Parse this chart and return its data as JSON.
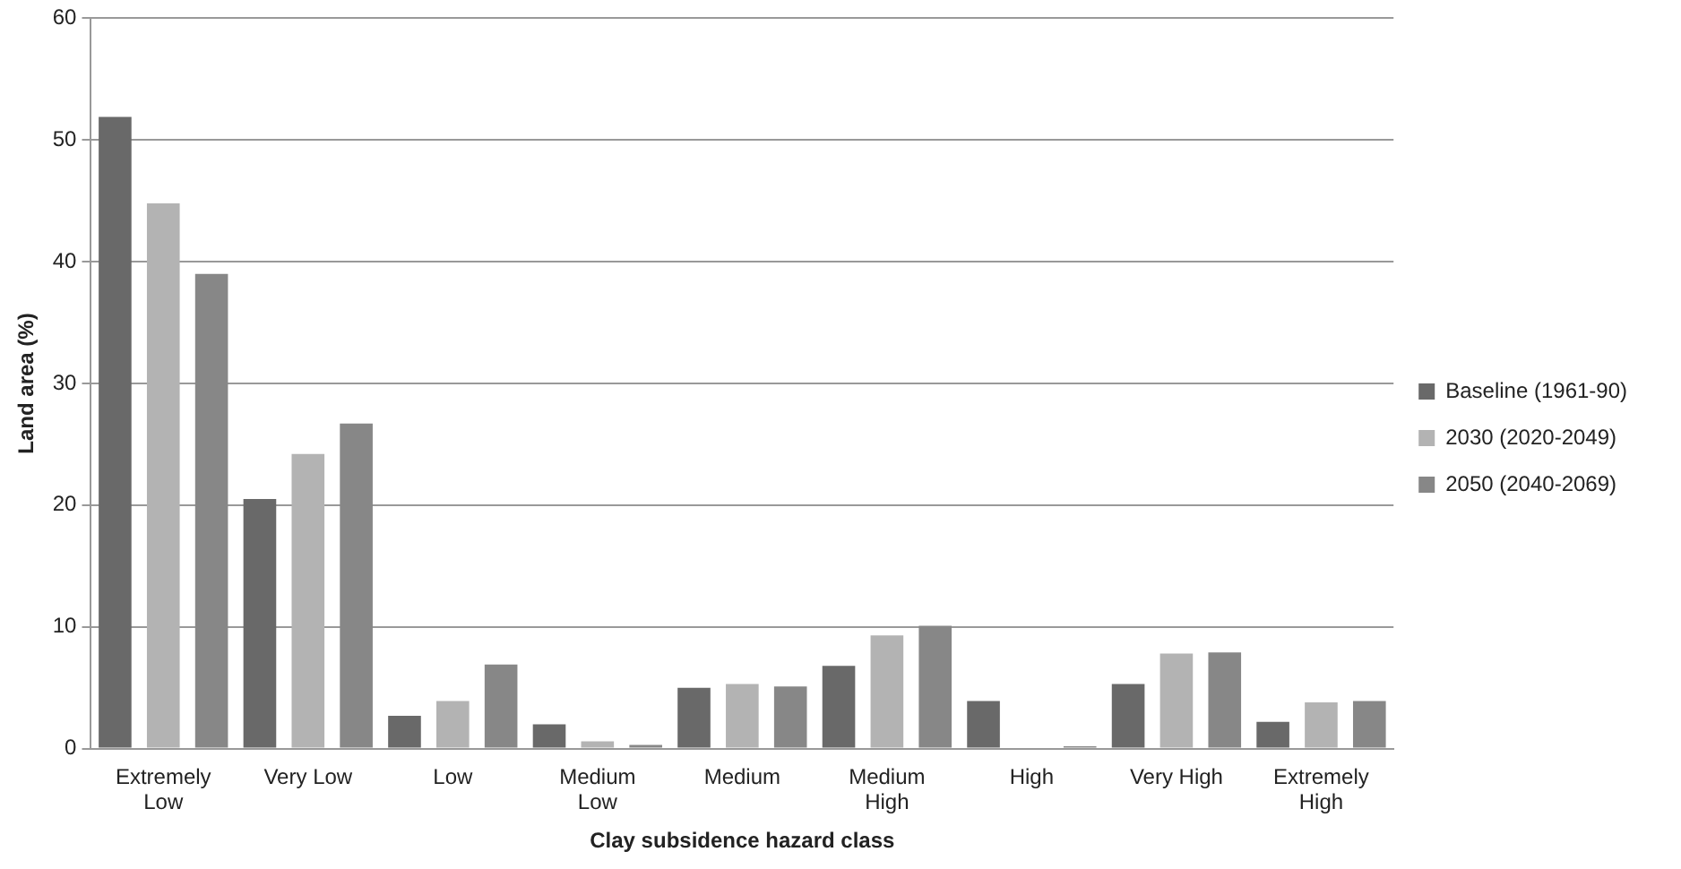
{
  "chart_data": {
    "type": "bar",
    "xlabel": "Clay subsidence hazard class",
    "ylabel": "Land area (%)",
    "categories": [
      "Extremely Low",
      "Very Low",
      "Low",
      "Medium Low",
      "Medium",
      "Medium High",
      "High",
      "Very High",
      "Extremely High"
    ],
    "series": [
      {
        "name": "Baseline (1961-90)",
        "color": "#696969",
        "values": [
          51.9,
          20.5,
          2.7,
          2.0,
          5.0,
          6.8,
          3.9,
          5.3,
          2.2
        ]
      },
      {
        "name": "2030 (2020-2049)",
        "color": "#b3b3b3",
        "values": [
          44.8,
          24.2,
          3.9,
          0.6,
          5.3,
          9.3,
          null,
          7.8,
          3.8
        ]
      },
      {
        "name": "2050 (2040-2069)",
        "color": "#878787",
        "values": [
          39.0,
          26.7,
          6.9,
          0.3,
          5.1,
          10.1,
          0.2,
          7.9,
          3.9
        ]
      }
    ],
    "ylim": [
      0,
      60
    ],
    "yticks": [
      0,
      10,
      20,
      30,
      40,
      50,
      60
    ],
    "grid": "y",
    "legend": "right"
  }
}
